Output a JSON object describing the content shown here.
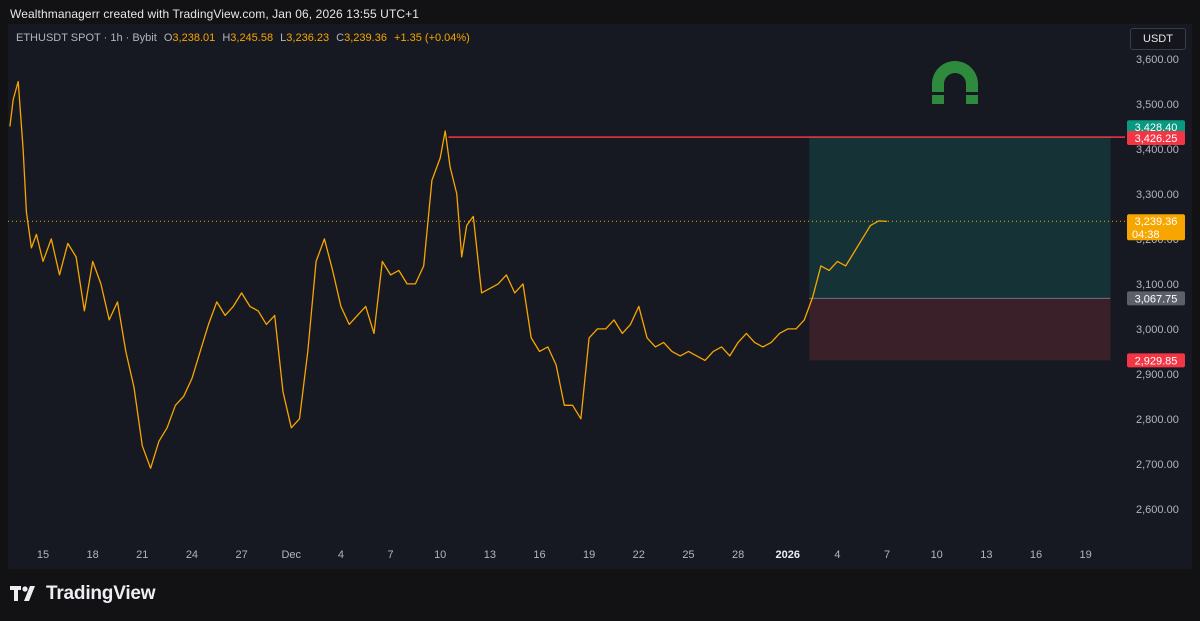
{
  "caption": "Wealthmanagerr created with TradingView.com, Jan 06, 2026 13:55 UTC+1",
  "header": {
    "symbol": "ETHUSDT SPOT · 1h · Bybit",
    "open_label": "O",
    "open": "3,238.01",
    "high_label": "H",
    "high": "3,245.58",
    "low_label": "L",
    "low": "3,236.23",
    "close_label": "C",
    "close": "3,239.36",
    "change": "+1.35 (+0.04%)"
  },
  "currency_button": "USDT",
  "logo_text": "TradingView",
  "colors": {
    "background": "#161822",
    "price_line": "#f7a600",
    "target_zone": "#153336",
    "stop_zone": "#3a2029",
    "target_label": "#089981",
    "stop_label": "#f23645",
    "entry_label": "#5d606b",
    "horizontal_line": "#f23645",
    "magnet_icon": "#2e8b3e"
  },
  "icons": [
    "magnet-icon",
    "tradingview-logo-icon"
  ],
  "chart_data": {
    "type": "line",
    "title": "",
    "xlabel": "",
    "ylabel": "",
    "ylim": [
      2550,
      3650
    ],
    "grid": false,
    "y_ticks": [
      2600,
      2700,
      2800,
      2900,
      3000,
      3100,
      3200,
      3300,
      3400,
      3500,
      3600
    ],
    "y_tick_labels": [
      "2,600.00",
      "2,700.00",
      "2,800.00",
      "2,900.00",
      "3,000.00",
      "3,100.00",
      "3,200.00",
      "3,300.00",
      "3,400.00",
      "3,500.00",
      "3,600.00"
    ],
    "x_tick_labels": [
      {
        "label": "15",
        "day": 15
      },
      {
        "label": "18",
        "day": 18
      },
      {
        "label": "21",
        "day": 21
      },
      {
        "label": "24",
        "day": 24
      },
      {
        "label": "27",
        "day": 27
      },
      {
        "label": "Dec",
        "day": 30
      },
      {
        "label": "4",
        "day": 33
      },
      {
        "label": "7",
        "day": 36
      },
      {
        "label": "10",
        "day": 39
      },
      {
        "label": "13",
        "day": 42
      },
      {
        "label": "16",
        "day": 45
      },
      {
        "label": "19",
        "day": 48
      },
      {
        "label": "22",
        "day": 51
      },
      {
        "label": "25",
        "day": 54
      },
      {
        "label": "28",
        "day": 57
      },
      {
        "label": "2026",
        "day": 60,
        "bold": true
      },
      {
        "label": "4",
        "day": 63
      },
      {
        "label": "7",
        "day": 66
      },
      {
        "label": "10",
        "day": 69
      },
      {
        "label": "13",
        "day": 72
      },
      {
        "label": "16",
        "day": 75
      },
      {
        "label": "19",
        "day": 78
      }
    ],
    "series": [
      {
        "x": [
          13.0,
          13.2,
          13.5,
          13.8,
          14.0,
          14.3,
          14.6,
          15.0,
          15.5,
          16.0,
          16.5,
          17.0,
          17.5,
          18.0,
          18.5,
          19.0,
          19.5,
          20.0,
          20.5,
          21.0,
          21.5,
          22.0,
          22.5,
          23.0,
          23.5,
          24.0,
          24.5,
          25.0,
          25.5,
          26.0,
          26.5,
          27.0,
          27.5,
          28.0,
          28.5,
          29.0,
          29.5,
          30.0,
          30.5,
          31.0,
          31.5,
          32.0,
          32.5,
          33.0,
          33.5,
          34.0,
          34.5,
          35.0,
          35.5,
          36.0,
          36.5,
          37.0,
          37.5,
          38.0,
          38.5,
          39.0,
          39.3,
          39.6,
          40.0,
          40.3,
          40.6,
          41.0,
          41.5,
          42.0,
          42.5,
          43.0,
          43.5,
          44.0,
          44.5,
          45.0,
          45.5,
          46.0,
          46.5,
          47.0,
          47.5,
          48.0,
          48.5,
          49.0,
          49.5,
          50.0,
          50.5,
          51.0,
          51.5,
          52.0,
          52.5,
          53.0,
          53.5,
          54.0,
          54.5,
          55.0,
          55.5,
          56.0,
          56.5,
          57.0,
          57.5,
          58.0,
          58.5,
          59.0,
          59.5,
          60.0,
          60.5,
          61.0,
          61.5,
          62.0,
          62.5,
          63.0,
          63.5,
          64.0,
          64.5,
          65.0,
          65.5,
          66.0
        ],
        "y": [
          3450,
          3510,
          3550,
          3400,
          3260,
          3180,
          3210,
          3150,
          3200,
          3120,
          3190,
          3160,
          3040,
          3150,
          3100,
          3020,
          3060,
          2950,
          2870,
          2740,
          2690,
          2750,
          2780,
          2830,
          2850,
          2890,
          2950,
          3010,
          3060,
          3030,
          3050,
          3080,
          3050,
          3040,
          3010,
          3030,
          2860,
          2780,
          2800,
          2950,
          3150,
          3200,
          3130,
          3050,
          3010,
          3030,
          3050,
          2990,
          3150,
          3120,
          3130,
          3100,
          3100,
          3140,
          3330,
          3380,
          3440,
          3360,
          3300,
          3160,
          3230,
          3250,
          3080,
          3090,
          3100,
          3120,
          3080,
          3100,
          2980,
          2950,
          2960,
          2920,
          2830,
          2830,
          2800,
          2980,
          3000,
          3000,
          3020,
          2990,
          3010,
          3050,
          2980,
          2960,
          2970,
          2950,
          2940,
          2950,
          2940,
          2930,
          2950,
          2960,
          2940,
          2970,
          2990,
          2970,
          2960,
          2970,
          2990,
          3000,
          3000,
          3020,
          3070,
          3140,
          3130,
          3150,
          3140,
          3170,
          3200,
          3230,
          3240,
          3239
        ]
      }
    ],
    "current_price": {
      "value": 3239.36,
      "label": "3,239.36",
      "countdown": "04:38"
    },
    "horizontal_line": {
      "value": 3426.25,
      "label": "3,426.25",
      "from_day": 39.5
    },
    "position_tool": {
      "from_day": 61.3,
      "to_day": 79.5,
      "target": {
        "value": 3428.4,
        "label": "3,428.40"
      },
      "entry": {
        "value": 3067.75,
        "label": "3,067.75"
      },
      "stop": {
        "value": 2929.85,
        "label": "2,929.85"
      }
    }
  }
}
